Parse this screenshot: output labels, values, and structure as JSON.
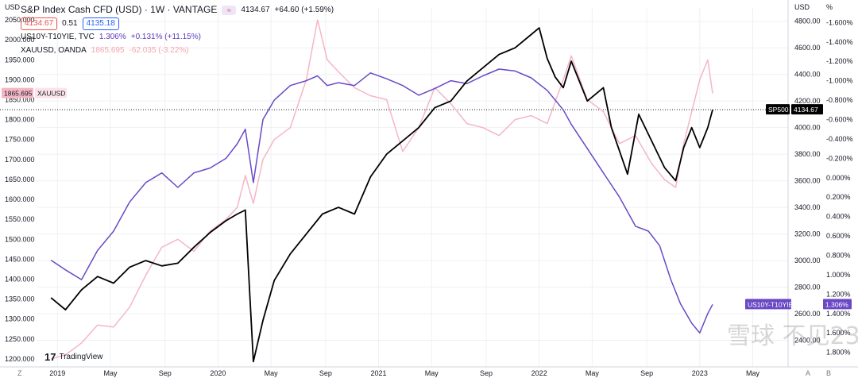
{
  "legend": {
    "main_title": "S&P Index Cash CFD (USD) · 1W · VANTAGE",
    "main_last": "4134.67",
    "main_change": "+64.60 (+1.59%)",
    "bid": "4134.67",
    "spread": "0.51",
    "ask": "4135.18",
    "series2_label": "US10Y-T10YIE, TVC",
    "series2_value": "1.306%",
    "series2_change": "+0.131% (+11.15%)",
    "series3_label": "XAUUSD, OANDA",
    "series3_value": "1865.695",
    "series3_change": "-62.035 (-3.22%)"
  },
  "units": {
    "left": "USD",
    "right1": "USD",
    "right2": "%"
  },
  "tags": {
    "xau": {
      "label": "XAUUSD",
      "value": "1865.695"
    },
    "sp500": {
      "label": "SP500",
      "value": "4134.67"
    },
    "us10y": {
      "label": "US10Y-T10YIE",
      "value": "1.306%"
    }
  },
  "branding": {
    "logo_text": "TradingView",
    "watermark": "雪球 不见233"
  },
  "corner_left": "Z",
  "corner_right_a": "A",
  "corner_right_b": "B",
  "colors": {
    "sp500": "#000000",
    "xau": "#f5b6c4",
    "real_yield": "#6a49c5",
    "grid": "#eef0f3"
  },
  "chart_data": {
    "type": "line",
    "x_tick_labels": [
      "2019",
      "May",
      "Sep",
      "2020",
      "May",
      "Sep",
      "2021",
      "May",
      "Sep",
      "2022",
      "May",
      "Sep",
      "2023",
      "May"
    ],
    "axes": {
      "left": {
        "label": "USD",
        "ticks": [
          1200,
          1250,
          1300,
          1350,
          1400,
          1450,
          1500,
          1550,
          1600,
          1650,
          1700,
          1750,
          1800,
          1850,
          1900,
          1950,
          2000,
          2050
        ],
        "range": [
          1180,
          2080
        ]
      },
      "right_usd": {
        "label": "USD",
        "ticks": [
          2400,
          2600,
          2800,
          3000,
          3200,
          3400,
          3600,
          3800,
          4000,
          4200,
          4400,
          4600,
          4800
        ],
        "range": [
          2200,
          4900
        ]
      },
      "right_pct_inverted": {
        "label": "%",
        "ticks": [
          -1.6,
          -1.4,
          -1.2,
          -1.0,
          -0.8,
          -0.6,
          -0.4,
          -0.2,
          0.0,
          0.2,
          0.4,
          0.6,
          0.8,
          1.0,
          1.2,
          1.4,
          1.6,
          1.8
        ],
        "tick_labels": [
          "-1.600%",
          "-1.400%",
          "-1.200%",
          "-1.000%",
          "-0.800%",
          "-0.600%",
          "-0.400%",
          "-0.200%",
          "0.000%",
          "0.200%",
          "0.400%",
          "0.600%",
          "0.800%",
          "1.000%",
          "1.200%",
          "1.400%",
          "1.600%",
          "1.800%"
        ],
        "range": [
          -1.75,
          1.95
        ],
        "inverted": true
      }
    },
    "series": [
      {
        "name": "SP500",
        "axis": "right_usd",
        "x": [
          2018.96,
          2019.05,
          2019.15,
          2019.25,
          2019.35,
          2019.45,
          2019.55,
          2019.65,
          2019.75,
          2019.85,
          2019.95,
          2020.05,
          2020.12,
          2020.17,
          2020.22,
          2020.28,
          2020.35,
          2020.45,
          2020.55,
          2020.65,
          2020.75,
          2020.85,
          2020.95,
          2021.05,
          2021.15,
          2021.25,
          2021.35,
          2021.45,
          2021.55,
          2021.65,
          2021.75,
          2021.85,
          2021.95,
          2022.0,
          2022.05,
          2022.1,
          2022.15,
          2022.2,
          2022.3,
          2022.4,
          2022.45,
          2022.55,
          2022.62,
          2022.7,
          2022.78,
          2022.85,
          2022.9,
          2022.95,
          2023.0,
          2023.05,
          2023.08
        ],
        "values": [
          2720,
          2630,
          2780,
          2880,
          2830,
          2950,
          3000,
          2960,
          2980,
          3100,
          3210,
          3300,
          3350,
          3380,
          2240,
          2550,
          2850,
          3050,
          3200,
          3350,
          3400,
          3350,
          3630,
          3800,
          3900,
          4000,
          4150,
          4200,
          4350,
          4450,
          4550,
          4600,
          4700,
          4750,
          4520,
          4380,
          4300,
          4500,
          4200,
          4300,
          4000,
          3650,
          4100,
          3900,
          3700,
          3600,
          3850,
          4000,
          3850,
          4000,
          4134.67
        ]
      },
      {
        "name": "XAUUSD",
        "axis": "left",
        "x": [
          2018.96,
          2019.05,
          2019.15,
          2019.25,
          2019.35,
          2019.45,
          2019.55,
          2019.65,
          2019.75,
          2019.85,
          2019.95,
          2020.05,
          2020.12,
          2020.17,
          2020.22,
          2020.28,
          2020.35,
          2020.45,
          2020.55,
          2020.62,
          2020.68,
          2020.75,
          2020.85,
          2020.95,
          2021.05,
          2021.15,
          2021.25,
          2021.35,
          2021.45,
          2021.55,
          2021.65,
          2021.75,
          2021.85,
          2021.95,
          2022.05,
          2022.15,
          2022.2,
          2022.3,
          2022.4,
          2022.5,
          2022.6,
          2022.7,
          2022.78,
          2022.85,
          2022.9,
          2022.95,
          2023.0,
          2023.05,
          2023.08
        ],
        "values": [
          1200,
          1210,
          1240,
          1285,
          1280,
          1330,
          1410,
          1480,
          1500,
          1470,
          1520,
          1550,
          1580,
          1660,
          1590,
          1700,
          1750,
          1780,
          1900,
          2050,
          1950,
          1920,
          1880,
          1860,
          1850,
          1720,
          1780,
          1880,
          1840,
          1790,
          1780,
          1760,
          1800,
          1810,
          1790,
          1900,
          1960,
          1850,
          1820,
          1740,
          1760,
          1690,
          1650,
          1630,
          1740,
          1820,
          1900,
          1950,
          1865.695
        ]
      },
      {
        "name": "US10Y-T10YIE",
        "axis": "right_pct_inverted",
        "x": [
          2018.96,
          2019.05,
          2019.15,
          2019.25,
          2019.35,
          2019.45,
          2019.55,
          2019.65,
          2019.75,
          2019.85,
          2019.95,
          2020.05,
          2020.12,
          2020.17,
          2020.22,
          2020.28,
          2020.35,
          2020.45,
          2020.55,
          2020.62,
          2020.68,
          2020.75,
          2020.85,
          2020.95,
          2021.05,
          2021.15,
          2021.25,
          2021.35,
          2021.45,
          2021.55,
          2021.65,
          2021.75,
          2021.85,
          2021.95,
          2022.05,
          2022.15,
          2022.2,
          2022.3,
          2022.4,
          2022.5,
          2022.6,
          2022.68,
          2022.75,
          2022.82,
          2022.88,
          2022.95,
          2023.0,
          2023.05,
          2023.08
        ],
        "values": [
          0.85,
          0.95,
          1.05,
          0.75,
          0.55,
          0.25,
          0.05,
          -0.05,
          0.1,
          -0.05,
          -0.1,
          -0.2,
          -0.35,
          -0.5,
          0.05,
          -0.6,
          -0.8,
          -0.95,
          -1.0,
          -1.05,
          -0.95,
          -0.98,
          -0.95,
          -1.08,
          -1.02,
          -0.95,
          -0.85,
          -0.92,
          -1.0,
          -0.97,
          -1.05,
          -1.12,
          -1.1,
          -1.03,
          -0.9,
          -0.7,
          -0.55,
          -0.3,
          -0.05,
          0.2,
          0.5,
          0.55,
          0.7,
          1.05,
          1.3,
          1.5,
          1.6,
          1.4,
          1.306
        ]
      }
    ]
  }
}
